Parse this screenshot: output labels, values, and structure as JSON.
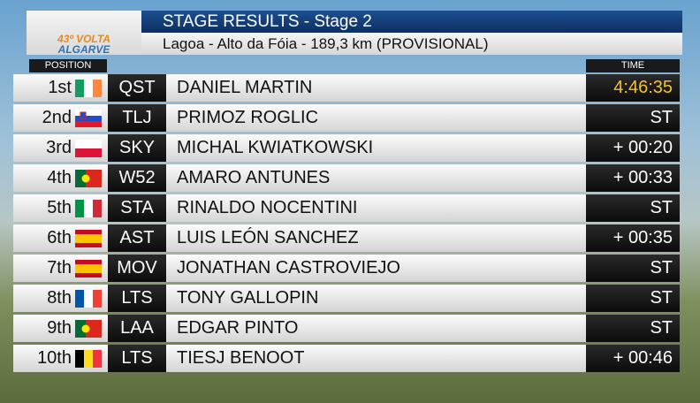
{
  "logo": {
    "line1": "43º VOLTA",
    "line2": "ALGARVE"
  },
  "header": {
    "title": "STAGE RESULTS - Stage 2",
    "subtitle": "Lagoa - Alto da Fóia - 189,3 km (PROVISIONAL)"
  },
  "table": {
    "columns": {
      "position": "POSITION",
      "time": "TIME"
    },
    "rows": [
      [
        "1st",
        "QST",
        "DANIEL MARTIN",
        "4:46:35"
      ],
      [
        "2nd",
        "TLJ",
        "PRIMOZ ROGLIC",
        "ST"
      ],
      [
        "3rd",
        "SKY",
        "MICHAL KWIATKOWSKI",
        "+ 00:20"
      ],
      [
        "4th",
        "W52",
        "AMARO ANTUNES",
        "+ 00:33"
      ],
      [
        "5th",
        "STA",
        "RINALDO NOCENTINI",
        "ST"
      ],
      [
        "6th",
        "AST",
        "LUIS LEÓN SANCHEZ",
        "+ 00:35"
      ],
      [
        "7th",
        "MOV",
        "JONATHAN CASTROVIEJO",
        "ST"
      ],
      [
        "8th",
        "LTS",
        "TONY GALLOPIN",
        "ST"
      ],
      [
        "9th",
        "LAA",
        "EDGAR PINTO",
        "ST"
      ],
      [
        "10th",
        "LTS",
        "TIESJ BENOOT",
        "+ 00:46"
      ]
    ]
  }
}
